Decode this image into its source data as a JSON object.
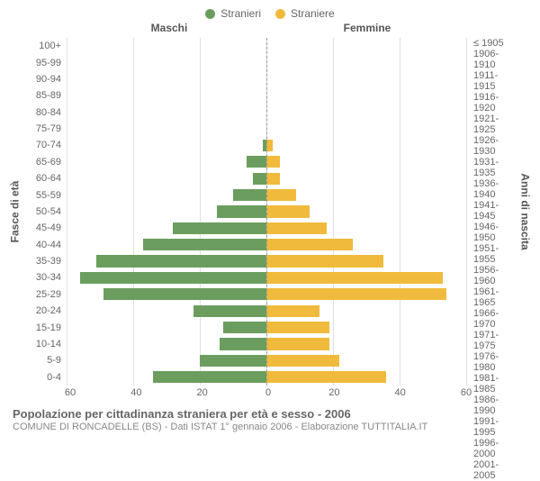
{
  "legend": {
    "male": {
      "label": "Stranieri",
      "color": "#6b9e5e"
    },
    "female": {
      "label": "Straniere",
      "color": "#f0ba3c"
    }
  },
  "column_headers": {
    "left": "Maschi",
    "right": "Femmine"
  },
  "axis_titles": {
    "left": "Fasce di età",
    "right": "Anni di nascita"
  },
  "xaxis": {
    "max": 60,
    "ticks_left": [
      60,
      40,
      20,
      0
    ],
    "ticks_right": [
      0,
      20,
      40,
      60
    ],
    "tick_labels_left": [
      "60",
      "40",
      "20",
      "0"
    ],
    "tick_labels_right": [
      "0",
      "20",
      "40",
      "60"
    ]
  },
  "grid_color": "#e0e0e0",
  "center_line_color": "#999999",
  "background_color": "#ffffff",
  "footer": {
    "title": "Popolazione per cittadinanza straniera per età e sesso - 2006",
    "subtitle": "COMUNE DI RONCADELLE (BS) - Dati ISTAT 1° gennaio 2006 - Elaborazione TUTTITALIA.IT"
  },
  "rows": [
    {
      "age": "100+",
      "birth": "≤ 1905",
      "m": 0,
      "f": 0
    },
    {
      "age": "95-99",
      "birth": "1906-1910",
      "m": 0,
      "f": 0
    },
    {
      "age": "90-94",
      "birth": "1911-1915",
      "m": 0,
      "f": 0
    },
    {
      "age": "85-89",
      "birth": "1916-1920",
      "m": 0,
      "f": 0
    },
    {
      "age": "80-84",
      "birth": "1921-1925",
      "m": 0,
      "f": 0
    },
    {
      "age": "75-79",
      "birth": "1926-1930",
      "m": 0,
      "f": 0
    },
    {
      "age": "70-74",
      "birth": "1931-1935",
      "m": 1,
      "f": 2
    },
    {
      "age": "65-69",
      "birth": "1936-1940",
      "m": 6,
      "f": 4
    },
    {
      "age": "60-64",
      "birth": "1941-1945",
      "m": 4,
      "f": 4
    },
    {
      "age": "55-59",
      "birth": "1946-1950",
      "m": 10,
      "f": 9
    },
    {
      "age": "50-54",
      "birth": "1951-1955",
      "m": 15,
      "f": 13
    },
    {
      "age": "45-49",
      "birth": "1956-1960",
      "m": 28,
      "f": 18
    },
    {
      "age": "40-44",
      "birth": "1961-1965",
      "m": 37,
      "f": 26
    },
    {
      "age": "35-39",
      "birth": "1966-1970",
      "m": 51,
      "f": 35
    },
    {
      "age": "30-34",
      "birth": "1971-1975",
      "m": 56,
      "f": 53
    },
    {
      "age": "25-29",
      "birth": "1976-1980",
      "m": 49,
      "f": 54
    },
    {
      "age": "20-24",
      "birth": "1981-1985",
      "m": 22,
      "f": 16
    },
    {
      "age": "15-19",
      "birth": "1986-1990",
      "m": 13,
      "f": 19
    },
    {
      "age": "10-14",
      "birth": "1991-1995",
      "m": 14,
      "f": 19
    },
    {
      "age": "5-9",
      "birth": "1996-2000",
      "m": 20,
      "f": 22
    },
    {
      "age": "0-4",
      "birth": "2001-2005",
      "m": 34,
      "f": 36
    }
  ]
}
